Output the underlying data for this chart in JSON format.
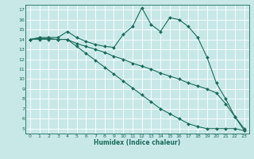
{
  "xlabel": "Humidex (Indice chaleur)",
  "x_values": [
    0,
    1,
    2,
    3,
    4,
    5,
    6,
    7,
    8,
    9,
    10,
    11,
    12,
    13,
    14,
    15,
    16,
    17,
    18,
    19,
    20,
    21,
    22,
    23
  ],
  "line1_y": [
    14.0,
    14.2,
    14.2,
    14.2,
    14.8,
    14.2,
    13.8,
    13.5,
    13.3,
    13.2,
    14.5,
    15.3,
    17.2,
    15.5,
    14.8,
    16.2,
    16.0,
    15.3,
    14.2,
    12.2,
    9.6,
    8.0,
    6.2,
    4.8
  ],
  "line2_y": [
    14.0,
    14.1,
    14.1,
    14.0,
    14.0,
    13.6,
    13.3,
    13.0,
    12.7,
    12.3,
    12.0,
    11.6,
    11.3,
    11.0,
    10.6,
    10.3,
    10.0,
    9.6,
    9.3,
    9.0,
    8.6,
    7.5,
    6.2,
    5.0
  ],
  "line3_y": [
    14.0,
    14.0,
    14.0,
    14.0,
    14.0,
    13.3,
    12.6,
    11.9,
    11.2,
    10.5,
    9.8,
    9.1,
    8.4,
    7.7,
    7.0,
    6.5,
    6.0,
    5.5,
    5.2,
    5.0,
    5.0,
    5.0,
    5.0,
    4.8
  ],
  "ylim": [
    4.5,
    17.5
  ],
  "xlim": [
    -0.5,
    23.5
  ],
  "yticks": [
    5,
    6,
    7,
    8,
    9,
    10,
    11,
    12,
    13,
    14,
    15,
    16,
    17
  ],
  "xticks": [
    0,
    1,
    2,
    3,
    4,
    5,
    6,
    7,
    8,
    9,
    10,
    11,
    12,
    13,
    14,
    15,
    16,
    17,
    18,
    19,
    20,
    21,
    22,
    23
  ],
  "line_color": "#1a6b5a",
  "bg_color": "#c8e8e8",
  "grid_color": "#ffffff",
  "marker": "D",
  "marker_size": 2.0,
  "linewidth": 0.8
}
